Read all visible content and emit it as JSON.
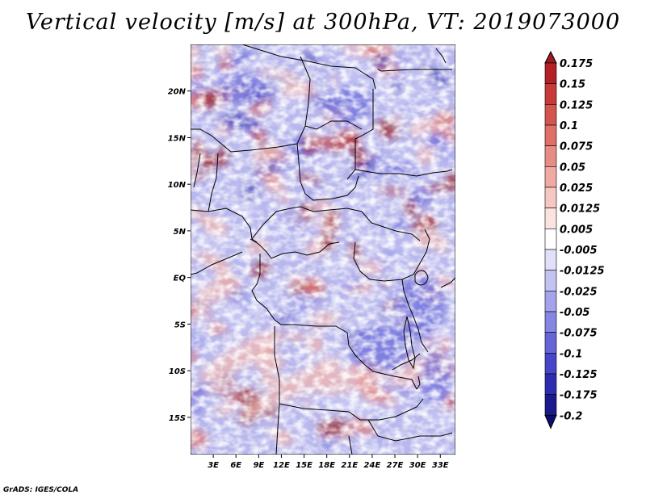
{
  "title": "Vertical velocity [m/s] at 300hPa, VT: 2019073000",
  "credit": "GrADS: IGES/COLA",
  "lat_ticks": [
    "20N",
    "15N",
    "10N",
    "5N",
    "EQ",
    "5S",
    "10S",
    "15S"
  ],
  "lon_ticks": [
    "3E",
    "6E",
    "9E",
    "12E",
    "15E",
    "18E",
    "21E",
    "24E",
    "27E",
    "30E",
    "33E"
  ],
  "map_extent": {
    "lon": [
      0,
      35
    ],
    "lat": [
      -19,
      25
    ]
  },
  "colorbar": {
    "levels": [
      "0.175",
      "0.15",
      "0.125",
      "0.1",
      "0.075",
      "0.05",
      "0.025",
      "0.0125",
      "0.005",
      "-0.005",
      "-0.0125",
      "-0.025",
      "-0.05",
      "-0.075",
      "-0.1",
      "-0.125",
      "-0.175",
      "-0.2"
    ],
    "colors": [
      "#9b1b1f",
      "#b42025",
      "#c73a36",
      "#d4554e",
      "#df7067",
      "#e88d84",
      "#f0aaa2",
      "#f6c8c2",
      "#fbe3e0",
      "#ffffff",
      "#e0e0fa",
      "#c3c3f3",
      "#a4a4ec",
      "#8585e3",
      "#6565d8",
      "#4646c8",
      "#2d2db0",
      "#1a1a8c",
      "#0d0d70"
    ]
  },
  "field_palette": {
    "neutral": "#ffffff",
    "positive": [
      "#f3b6ae",
      "#e4786e",
      "#c43a34",
      "#9b1b1f"
    ],
    "negative": [
      "#c9c9f4",
      "#9d9deb",
      "#6a6adb",
      "#3232b4"
    ]
  }
}
